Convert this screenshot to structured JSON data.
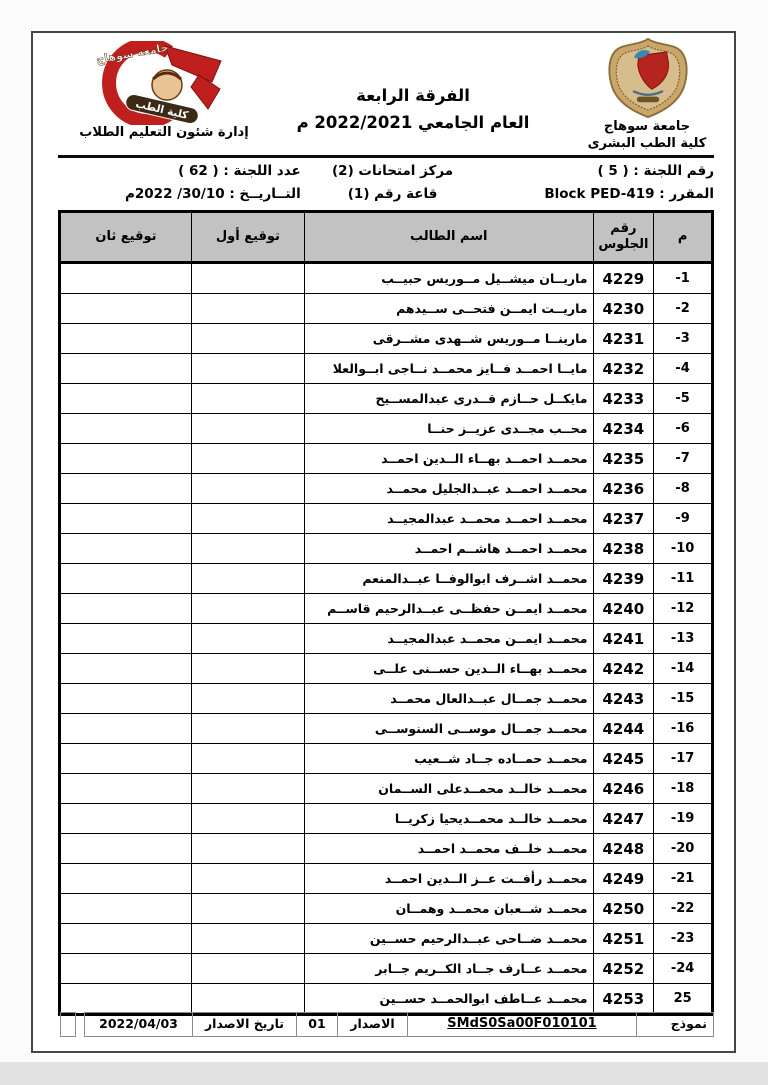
{
  "header": {
    "university_name": "جامعة سوهاج",
    "faculty_name": "كلية الطب البشرى",
    "admin_caption": "إدارة شئون التعليم الطلاب",
    "crest_arc_top": "جامعة سوهاج",
    "crest_arc_bottom": "كلية الطب",
    "title_line1": "الفرقة الرابعة",
    "title_line2": "العام الجامعي 2022/2021 م"
  },
  "info": {
    "committee_number": "رقم اللجنة : ( 5 )",
    "exam_center": "مركز امتحانات (2)",
    "committee_count": "عدد اللجنة : ( 62 )",
    "course": "المقرر : Block PED-419",
    "hall": "قاعة رقم (1)",
    "date": "التــاريــخ : 30/10/ 2022م"
  },
  "table": {
    "headers": {
      "index": "م",
      "seat": "رقم الجلوس",
      "name": "اسم الطالب",
      "first_signature": "توقيع أول",
      "second_signature": "توقيع ثان"
    },
    "rows": [
      {
        "index": "-1",
        "seat": "4229",
        "name": "ماريــان ميشــيل مــوريس حبيــب"
      },
      {
        "index": "-2",
        "seat": "4230",
        "name": "ماريــت ايمــن فتحــى ســيدهم"
      },
      {
        "index": "-3",
        "seat": "4231",
        "name": "مارينــا مــوريس شــهدى مشــرقى"
      },
      {
        "index": "-4",
        "seat": "4232",
        "name": "مايــا احمــد فــايز محمــد نــاجى ابــوالعلا"
      },
      {
        "index": "-5",
        "seat": "4233",
        "name": "مايكــل حــازم قــدرى عبدالمســيح"
      },
      {
        "index": "-6",
        "seat": "4234",
        "name": "محــب مجــدى عزيــز حنــا"
      },
      {
        "index": "-7",
        "seat": "4235",
        "name": "محمــد احمــد بهــاء الــدين احمــد"
      },
      {
        "index": "-8",
        "seat": "4236",
        "name": "محمــد احمــد عبــدالجليل محمــد"
      },
      {
        "index": "-9",
        "seat": "4237",
        "name": "محمــد احمــد محمــد عبدالمجيــد"
      },
      {
        "index": "-10",
        "seat": "4238",
        "name": "محمــد احمــد هاشــم احمــد"
      },
      {
        "index": "-11",
        "seat": "4239",
        "name": "محمــد اشــرف ابوالوفــا عبــدالمنعم"
      },
      {
        "index": "-12",
        "seat": "4240",
        "name": "محمــد ايمــن حفظــى عبــدالرحيم قاســم"
      },
      {
        "index": "-13",
        "seat": "4241",
        "name": "محمــد ايمــن محمــد عبدالمجيــد"
      },
      {
        "index": "-14",
        "seat": "4242",
        "name": "محمــد بهــاء الــدين حســنى علــى"
      },
      {
        "index": "-15",
        "seat": "4243",
        "name": "محمــد جمــال عبــدالعال محمــد"
      },
      {
        "index": "-16",
        "seat": "4244",
        "name": "محمــد جمــال موســى السنوســى"
      },
      {
        "index": "-17",
        "seat": "4245",
        "name": "محمــد حمــاده جــاد شــعيب"
      },
      {
        "index": "-18",
        "seat": "4246",
        "name": "محمــد خالــد محمــدعلى الســمان"
      },
      {
        "index": "-19",
        "seat": "4247",
        "name": "محمــد خالــد محمــديحيا زكريــا"
      },
      {
        "index": "-20",
        "seat": "4248",
        "name": "محمــد خلــف محمــد احمــد"
      },
      {
        "index": "-21",
        "seat": "4249",
        "name": "محمــد رأفــت عــز الــدين احمــد"
      },
      {
        "index": "-22",
        "seat": "4250",
        "name": "محمــد شــعبان محمــد وهمــان"
      },
      {
        "index": "-23",
        "seat": "4251",
        "name": "محمــد ضــاحى عبــدالرحيم حســين"
      },
      {
        "index": "-24",
        "seat": "4252",
        "name": "محمــد عــارف جــاد الكــريم جــابر"
      },
      {
        "index": "25",
        "seat": "4253",
        "name": "محمــد عــاطف ابوالحمــد حســين"
      }
    ]
  },
  "footer": {
    "form_label": "نموذج رقم",
    "form_code": "SMdS0Sa00F010101",
    "issue_label": "الاصدار",
    "issue_number": "01",
    "issue_date_label": "تاريخ الاصدار",
    "issue_date": "2022/04/03"
  }
}
